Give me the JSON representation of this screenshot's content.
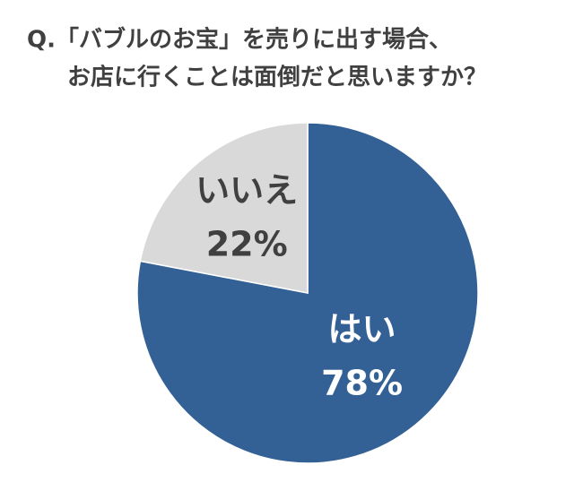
{
  "chart_data": {
    "type": "pie",
    "title": [
      "Q.「バブルのお宝」を売りに出す場合、",
      "お店に行くことは面倒だと思いますか？"
    ],
    "categories": [
      "はい",
      "いいえ"
    ],
    "values": [
      78,
      22
    ],
    "value_labels": [
      "78%",
      "22%"
    ],
    "colors": [
      "#336195",
      "#d9d9d9"
    ],
    "label_colors": [
      "#ffffff",
      "#404040"
    ]
  }
}
